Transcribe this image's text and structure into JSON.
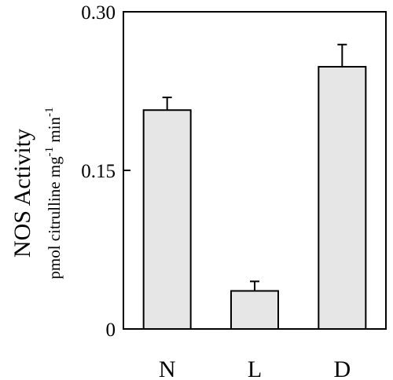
{
  "chart_data": {
    "type": "bar",
    "categories": [
      "N",
      "L",
      "D"
    ],
    "values": [
      0.207,
      0.036,
      0.248
    ],
    "errors": [
      0.012,
      0.009,
      0.021
    ],
    "ylim": [
      0,
      0.3
    ],
    "yticks": [
      "0",
      "0.15",
      "0.30"
    ],
    "ytick_values": [
      0,
      0.15,
      0.3
    ],
    "ylabel": "NOS Activity",
    "ylabel_units": {
      "main": "pmol citrulline mg",
      "exp1": "-1",
      "middle": " min",
      "exp2": "-1"
    },
    "bar_fill": "#e6e6e6",
    "grid": false
  }
}
